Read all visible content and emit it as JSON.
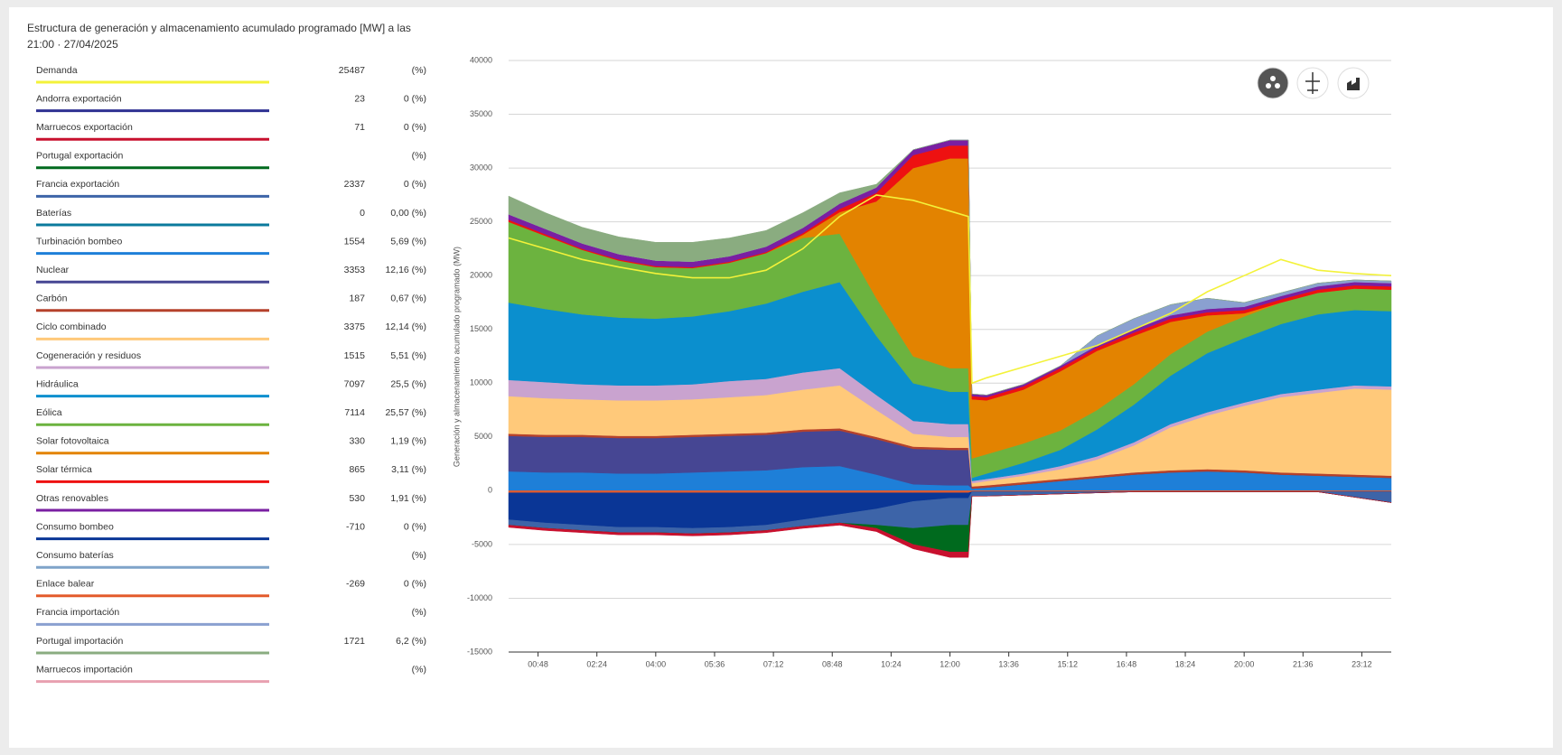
{
  "chart_data": {
    "type": "stacked-area",
    "title": "Estructura de generación y almacenamiento acumulado programado [MW] a las",
    "subtitle": "21:00 · 27/04/2025",
    "y_label": "Generación y almacenamiento acumulado programado (MW)",
    "x": [
      0,
      1,
      2,
      3,
      4,
      5,
      6,
      7,
      8,
      9,
      10,
      11,
      12,
      12.5,
      12.6,
      13,
      14,
      15,
      16,
      17,
      18,
      19,
      20,
      21,
      22,
      23,
      24
    ],
    "xlim": [
      0,
      24
    ],
    "xticks": [
      {
        "value": 0.8,
        "label": "00:48"
      },
      {
        "value": 2.4,
        "label": "02:24"
      },
      {
        "value": 4,
        "label": "04:00"
      },
      {
        "value": 5.6,
        "label": "05:36"
      },
      {
        "value": 7.2,
        "label": "07:12"
      },
      {
        "value": 8.8,
        "label": "08:48"
      },
      {
        "value": 10.4,
        "label": "10:24"
      },
      {
        "value": 12,
        "label": "12:00"
      },
      {
        "value": 13.6,
        "label": "13:36"
      },
      {
        "value": 15.2,
        "label": "15:12"
      },
      {
        "value": 16.8,
        "label": "16:48"
      },
      {
        "value": 18.4,
        "label": "18:24"
      },
      {
        "value": 20,
        "label": "20:00"
      },
      {
        "value": 21.6,
        "label": "21:36"
      },
      {
        "value": 23.2,
        "label": "23:12"
      }
    ],
    "ylim": [
      -15000,
      40000
    ],
    "yticks": [
      40000,
      35000,
      30000,
      25000,
      20000,
      15000,
      10000,
      5000,
      0,
      -5000,
      -10000,
      -15000
    ],
    "grid": true,
    "series": [
      {
        "name": "Demanda",
        "color": "#f3f23a",
        "kind": "line",
        "reading": 25487,
        "share": "(%)",
        "values": [
          23500,
          22500,
          21500,
          20800,
          20200,
          19800,
          19800,
          20500,
          22500,
          25500,
          27500,
          27000,
          26000,
          25500,
          10000,
          10500,
          11500,
          12500,
          13500,
          15000,
          16500,
          18500,
          20000,
          21500,
          20500,
          20200,
          20000
        ]
      },
      {
        "name": "Andorra exportación",
        "color": "#2e3192",
        "reading": 23,
        "share": "0 (%)"
      },
      {
        "name": "Marruecos exportación",
        "color": "#c8102e",
        "reading": 71,
        "share": "0 (%)",
        "values": [
          -200,
          -200,
          -200,
          -200,
          -200,
          -200,
          -200,
          -200,
          -200,
          -200,
          -300,
          -400,
          -500,
          -500,
          0,
          0,
          0,
          0,
          0,
          0,
          0,
          0,
          0,
          0,
          0,
          0,
          0
        ]
      },
      {
        "name": "Portugal exportación",
        "color": "#006a1e",
        "reading": null,
        "share": "(%)",
        "values": [
          0,
          0,
          0,
          0,
          0,
          0,
          0,
          0,
          0,
          0,
          -300,
          -1500,
          -2500,
          -2500,
          0,
          0,
          0,
          0,
          0,
          0,
          0,
          0,
          0,
          0,
          0,
          0,
          0
        ]
      },
      {
        "name": "Francia exportación",
        "color": "#3d64a8",
        "reading": 2337,
        "share": "0 (%)",
        "values": [
          -500,
          -500,
          -500,
          -500,
          -500,
          -500,
          -500,
          -500,
          -600,
          -800,
          -1500,
          -2500,
          -2500,
          -2500,
          -400,
          -400,
          -300,
          -200,
          -100,
          0,
          0,
          0,
          0,
          0,
          0,
          -500,
          -1000
        ]
      },
      {
        "name": "Baterías",
        "color": "#0b7a9c",
        "reading": 0,
        "share": "0,00 (%)"
      },
      {
        "name": "Turbinación bombeo",
        "color": "#1e7fd8",
        "reading": 1554,
        "share": "5,69 (%)",
        "values": [
          1800,
          1700,
          1700,
          1600,
          1600,
          1700,
          1800,
          1900,
          2200,
          2300,
          1500,
          600,
          500,
          500,
          200,
          300,
          600,
          900,
          1200,
          1500,
          1700,
          1800,
          1700,
          1500,
          1400,
          1300,
          1200
        ]
      },
      {
        "name": "Nuclear",
        "color": "#464693",
        "reading": 3353,
        "share": "12,16 (%)",
        "values": [
          3300,
          3300,
          3300,
          3300,
          3300,
          3300,
          3300,
          3300,
          3300,
          3300,
          3300,
          3300,
          3300,
          3300,
          0,
          0,
          0,
          0,
          0,
          0,
          0,
          0,
          0,
          0,
          0,
          0,
          0
        ]
      },
      {
        "name": "Carbón",
        "color": "#b5412b",
        "reading": 187,
        "share": "0,67 (%)",
        "values": [
          200,
          200,
          200,
          200,
          200,
          200,
          200,
          200,
          200,
          200,
          200,
          200,
          200,
          200,
          200,
          200,
          200,
          200,
          200,
          200,
          200,
          200,
          200,
          200,
          200,
          200,
          200
        ]
      },
      {
        "name": "Ciclo combinado",
        "color": "#ffc97a",
        "reading": 3375,
        "share": "12,14 (%)",
        "values": [
          3500,
          3400,
          3300,
          3300,
          3300,
          3300,
          3400,
          3500,
          3700,
          4000,
          2500,
          1200,
          1000,
          1000,
          300,
          400,
          600,
          900,
          1500,
          2500,
          4000,
          5000,
          6000,
          7000,
          7500,
          8000,
          8000
        ]
      },
      {
        "name": "Cogeneración y residuos",
        "color": "#c9a3cf",
        "reading": 1515,
        "share": "5,51 (%)",
        "values": [
          1500,
          1500,
          1400,
          1400,
          1400,
          1400,
          1500,
          1500,
          1600,
          1600,
          1400,
          1200,
          1200,
          1200,
          200,
          200,
          200,
          300,
          300,
          300,
          300,
          300,
          300,
          300,
          300,
          300,
          300
        ]
      },
      {
        "name": "Hidráulica",
        "color": "#0b8fce",
        "reading": 7097,
        "share": "25,5 (%)",
        "values": [
          7200,
          6800,
          6500,
          6300,
          6200,
          6300,
          6500,
          7000,
          7500,
          8000,
          5500,
          3500,
          3000,
          3000,
          300,
          500,
          1000,
          1500,
          2500,
          3500,
          4500,
          5500,
          6000,
          6500,
          7000,
          7000,
          7000
        ]
      },
      {
        "name": "Eólica",
        "color": "#6cb33f",
        "reading": 7114,
        "share": "25,57 (%)",
        "values": [
          7500,
          6800,
          6000,
          5300,
          4800,
          4500,
          4500,
          4700,
          5000,
          4500,
          3500,
          2500,
          2200,
          2200,
          1800,
          1800,
          1800,
          1800,
          1800,
          1900,
          2000,
          2000,
          2000,
          2000,
          2000,
          2000,
          2000
        ]
      },
      {
        "name": "Solar fotovoltaica",
        "color": "#e38300",
        "reading": 330,
        "share": "1,19 (%)",
        "values": [
          0,
          0,
          0,
          0,
          0,
          0,
          0,
          0,
          300,
          2000,
          9000,
          17500,
          19500,
          19500,
          5500,
          5000,
          5000,
          5500,
          5500,
          4500,
          3000,
          1500,
          300,
          0,
          0,
          0,
          0
        ]
      },
      {
        "name": "Solar térmica",
        "color": "#ee1111",
        "reading": 865,
        "share": "3,11 (%)",
        "values": [
          200,
          150,
          100,
          100,
          100,
          100,
          100,
          100,
          150,
          300,
          800,
          1200,
          1200,
          1200,
          300,
          300,
          300,
          300,
          300,
          300,
          300,
          300,
          300,
          300,
          300,
          300,
          300
        ]
      },
      {
        "name": "Otras renovables",
        "color": "#7a1fa2",
        "reading": 530,
        "share": "1,91 (%)",
        "values": [
          500,
          500,
          500,
          500,
          500,
          500,
          500,
          500,
          500,
          500,
          500,
          500,
          500,
          500,
          200,
          200,
          200,
          200,
          200,
          300,
          300,
          300,
          300,
          300,
          300,
          300,
          300
        ]
      },
      {
        "name": "Consumo bombeo",
        "color": "#0a3696",
        "reading": -710,
        "share": "0 (%)",
        "values": [
          -2500,
          -2800,
          -3000,
          -3200,
          -3200,
          -3300,
          -3200,
          -3000,
          -2500,
          -2000,
          -1500,
          -800,
          -500,
          -500,
          0,
          0,
          0,
          0,
          0,
          0,
          0,
          0,
          0,
          0,
          0,
          0,
          0
        ]
      },
      {
        "name": "Consumo baterías",
        "color": "#7fa3c9",
        "reading": null,
        "share": "(%)"
      },
      {
        "name": "Enlace balear",
        "color": "#e35b2c",
        "reading": -269,
        "share": "0 (%)",
        "values": [
          -200,
          -200,
          -200,
          -200,
          -200,
          -200,
          -200,
          -200,
          -200,
          -200,
          -200,
          -200,
          -200,
          -200,
          -100,
          -100,
          -100,
          -100,
          -100,
          -100,
          -100,
          -100,
          -100,
          -100,
          -100,
          -100,
          -100
        ]
      },
      {
        "name": "Francia importación",
        "color": "#8aa0d0",
        "reading": null,
        "share": "(%)",
        "values": [
          0,
          0,
          0,
          0,
          0,
          0,
          0,
          0,
          0,
          0,
          0,
          0,
          0,
          0,
          0,
          0,
          0,
          0,
          900,
          1000,
          1000,
          1000,
          400,
          300,
          300,
          200,
          200
        ]
      },
      {
        "name": "Portugal importación",
        "color": "#8aac80",
        "reading": 1721,
        "share": "6,2 (%)",
        "values": [
          1700,
          1500,
          1500,
          1600,
          1700,
          1800,
          1700,
          1500,
          1400,
          1000,
          300,
          0,
          0,
          0,
          0,
          0,
          0,
          0,
          0,
          0,
          0,
          0,
          0,
          0,
          0,
          0,
          0
        ]
      },
      {
        "name": "Marruecos importación",
        "color": "#e8a0b0",
        "reading": null,
        "share": "(%)"
      }
    ]
  }
}
